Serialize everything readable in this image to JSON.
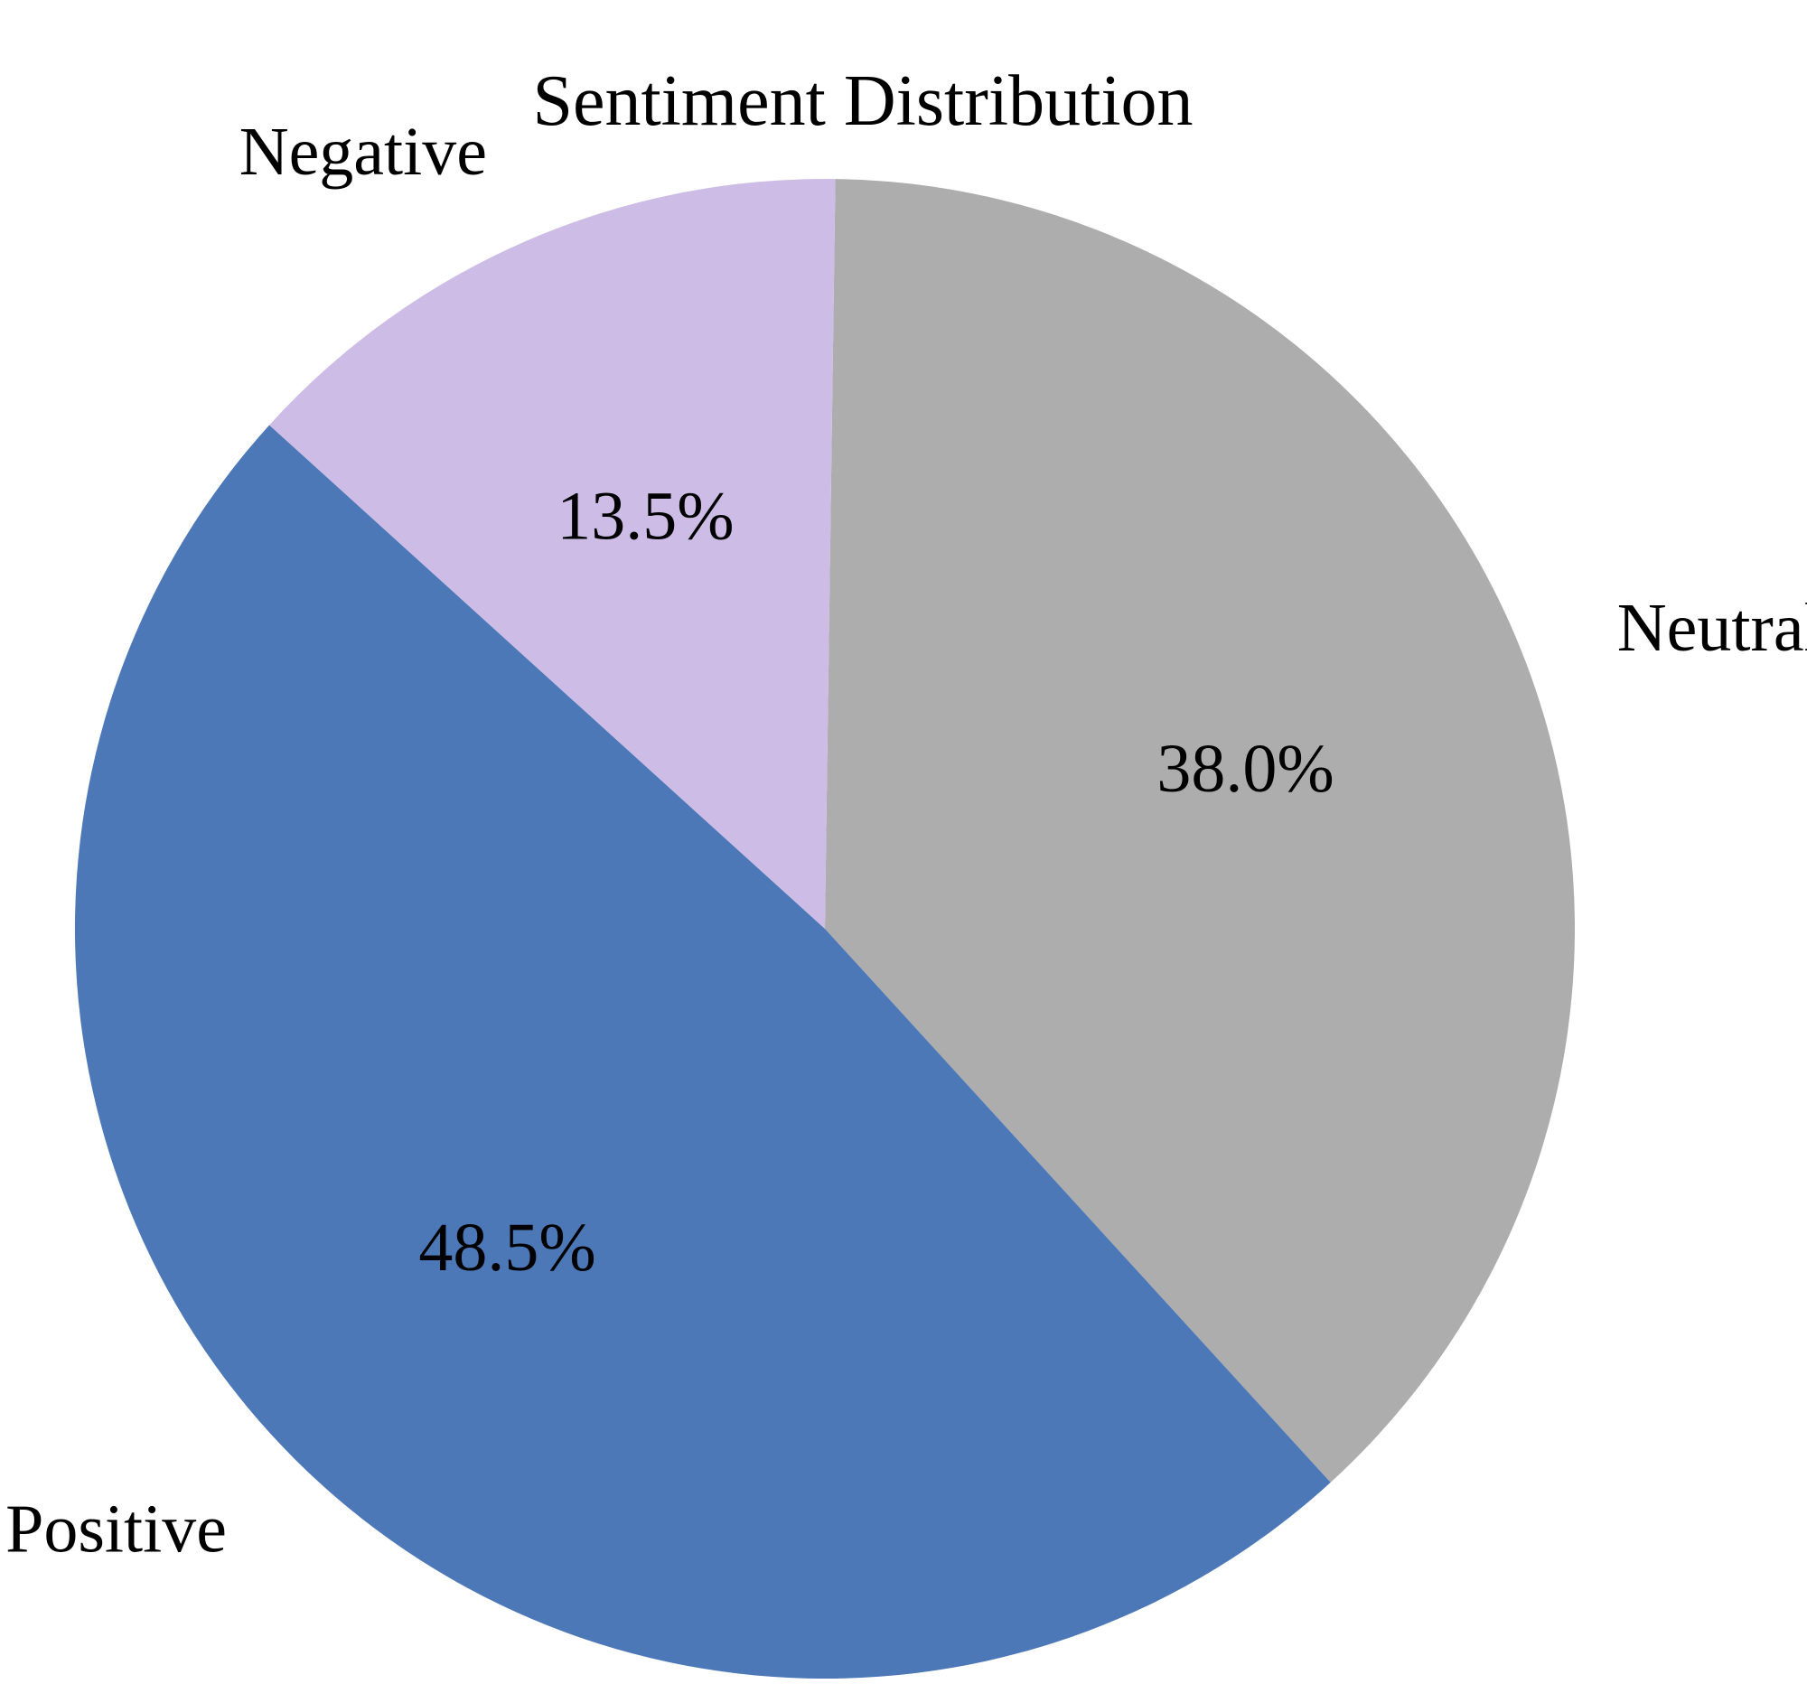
{
  "chart_data": {
    "type": "pie",
    "title": "Sentiment Distribution",
    "slices": [
      {
        "label": "Neutral",
        "value": 38.0,
        "display": "38.0%",
        "color": "#adadad"
      },
      {
        "label": "Positive",
        "value": 48.5,
        "display": "48.5%",
        "color": "#4d78b8"
      },
      {
        "label": "Negative",
        "value": 13.5,
        "display": "13.5%",
        "color": "#cdbde6"
      }
    ],
    "start_angle_deg": 89.2,
    "direction": "clockwise",
    "legend": "none"
  }
}
